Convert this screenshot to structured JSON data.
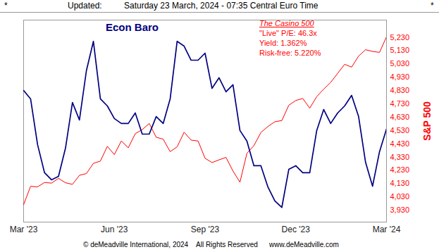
{
  "chart_data": {
    "type": "line",
    "title": "Econ Baro",
    "header": [
      "*",
      "Updated:",
      "Saturday 23 March, 2024 - 07:35 Central Euro Time",
      "*"
    ],
    "annotations": [
      "The Casino 500",
      "\"Live\" P/E: 46.3x",
      "Yield: 1.362%",
      "Risk-free: 5.220%"
    ],
    "footer": [
      "© deMeadville International, 2024",
      "All Rights Reserved",
      "www.deMeadville.com"
    ],
    "y_label": "S&P 500",
    "categories": [
      "Mar '23",
      null,
      null,
      null,
      null,
      null,
      null,
      null,
      null,
      null,
      null,
      null,
      null,
      "Jun '23",
      null,
      null,
      null,
      null,
      null,
      null,
      null,
      null,
      null,
      null,
      null,
      null,
      "Sep '23",
      null,
      null,
      null,
      null,
      null,
      null,
      null,
      null,
      null,
      null,
      null,
      null,
      "Dec '23",
      null,
      null,
      null,
      null,
      null,
      null,
      null,
      null,
      null,
      null,
      null,
      null,
      "Mar '24"
    ],
    "series": [
      {
        "name": "Econ Baro",
        "color": "#000080",
        "line_style": "solid",
        "values": [
          4830,
          4767,
          4423,
          4211,
          4158,
          4184,
          4396,
          4740,
          4608,
          4980,
          5200,
          4767,
          4714,
          4619,
          4582,
          4582,
          4661,
          4502,
          4502,
          4634,
          4582,
          4767,
          5200,
          5164,
          5058,
          5058,
          5111,
          4846,
          4926,
          4820,
          4873,
          4529,
          4449,
          4264,
          4264,
          4105,
          3999,
          3950,
          4237,
          4264,
          4211,
          4211,
          4529,
          4687,
          4582,
          4661,
          4714,
          4793,
          4634,
          4290,
          4110,
          4370,
          4540
        ]
      },
      {
        "name": "S&P 500",
        "color": "#ff0000",
        "line_style": "solid",
        "values": [
          3971,
          4109,
          4105,
          4138,
          4133,
          4169,
          4136,
          4124,
          4192,
          4205,
          4282,
          4299,
          4410,
          4348,
          4450,
          4399,
          4505,
          4536,
          4582,
          4478,
          4464,
          4370,
          4406,
          4516,
          4457,
          4450,
          4320,
          4288,
          4308,
          4327,
          4224,
          4140,
          4358,
          4415,
          4514,
          4559,
          4595,
          4604,
          4719,
          4755,
          4770,
          4697,
          4784,
          4840,
          4891,
          4959,
          5027,
          5006,
          5089,
          5137,
          5124,
          5117,
          5234
        ]
      }
    ],
    "ylim": [
      3840,
      5360
    ],
    "yticks": [
      3930,
      4030,
      4130,
      4230,
      4330,
      4430,
      4530,
      4630,
      4730,
      4830,
      4930,
      5030,
      5130,
      5230
    ],
    "grid": false
  }
}
